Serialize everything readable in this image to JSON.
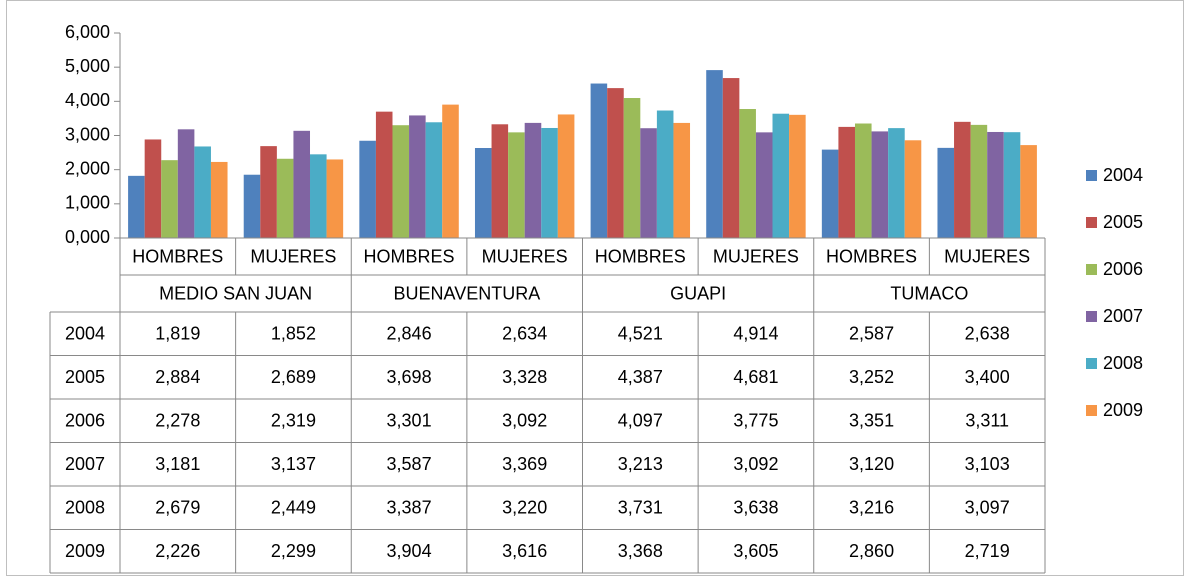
{
  "chart_data": {
    "type": "bar",
    "categories": [
      "HOMBRES",
      "MUJERES",
      "HOMBRES",
      "MUJERES",
      "HOMBRES",
      "MUJERES",
      "HOMBRES",
      "MUJERES"
    ],
    "groups": [
      "MEDIO SAN JUAN",
      "BUENAVENTURA",
      "GUAPI",
      "TUMACO"
    ],
    "series": [
      {
        "name": "2004",
        "color": "#4f81bd",
        "values": [
          1.819,
          1.852,
          2.846,
          2.634,
          4.521,
          4.914,
          2.587,
          2.638
        ],
        "value_labels": [
          "1,819",
          "1,852",
          "2,846",
          "2,634",
          "4,521",
          "4,914",
          "2,587",
          "2,638"
        ]
      },
      {
        "name": "2005",
        "color": "#c0504d",
        "values": [
          2.884,
          2.689,
          3.698,
          3.328,
          4.387,
          4.681,
          3.252,
          3.4
        ],
        "value_labels": [
          "2,884",
          "2,689",
          "3,698",
          "3,328",
          "4,387",
          "4,681",
          "3,252",
          "3,400"
        ]
      },
      {
        "name": "2006",
        "color": "#9bbb59",
        "values": [
          2.278,
          2.319,
          3.301,
          3.092,
          4.097,
          3.775,
          3.351,
          3.311
        ],
        "value_labels": [
          "2,278",
          "2,319",
          "3,301",
          "3,092",
          "4,097",
          "3,775",
          "3,351",
          "3,311"
        ]
      },
      {
        "name": "2007",
        "color": "#8064a2",
        "values": [
          3.181,
          3.137,
          3.587,
          3.369,
          3.213,
          3.092,
          3.12,
          3.103
        ],
        "value_labels": [
          "3,181",
          "3,137",
          "3,587",
          "3,369",
          "3,213",
          "3,092",
          "3,120",
          "3,103"
        ]
      },
      {
        "name": "2008",
        "color": "#4bacc6",
        "values": [
          2.679,
          2.449,
          3.387,
          3.22,
          3.731,
          3.638,
          3.216,
          3.097
        ],
        "value_labels": [
          "2,679",
          "2,449",
          "3,387",
          "3,220",
          "3,731",
          "3,638",
          "3,216",
          "3,097"
        ]
      },
      {
        "name": "2009",
        "color": "#f79646",
        "values": [
          2.226,
          2.299,
          3.904,
          3.616,
          3.368,
          3.605,
          2.86,
          2.719
        ],
        "value_labels": [
          "2,226",
          "2,299",
          "3,904",
          "3,616",
          "3,368",
          "3,605",
          "2,860",
          "2,719"
        ]
      }
    ],
    "ylim": [
      0,
      6
    ],
    "yticks": [
      {
        "value": 0,
        "label": "0,000"
      },
      {
        "value": 1,
        "label": "1,000"
      },
      {
        "value": 2,
        "label": "2,000"
      },
      {
        "value": 3,
        "label": "3,000"
      },
      {
        "value": 4,
        "label": "4,000"
      },
      {
        "value": 5,
        "label": "5,000"
      },
      {
        "value": 6,
        "label": "6,000"
      }
    ],
    "legend": "right"
  }
}
